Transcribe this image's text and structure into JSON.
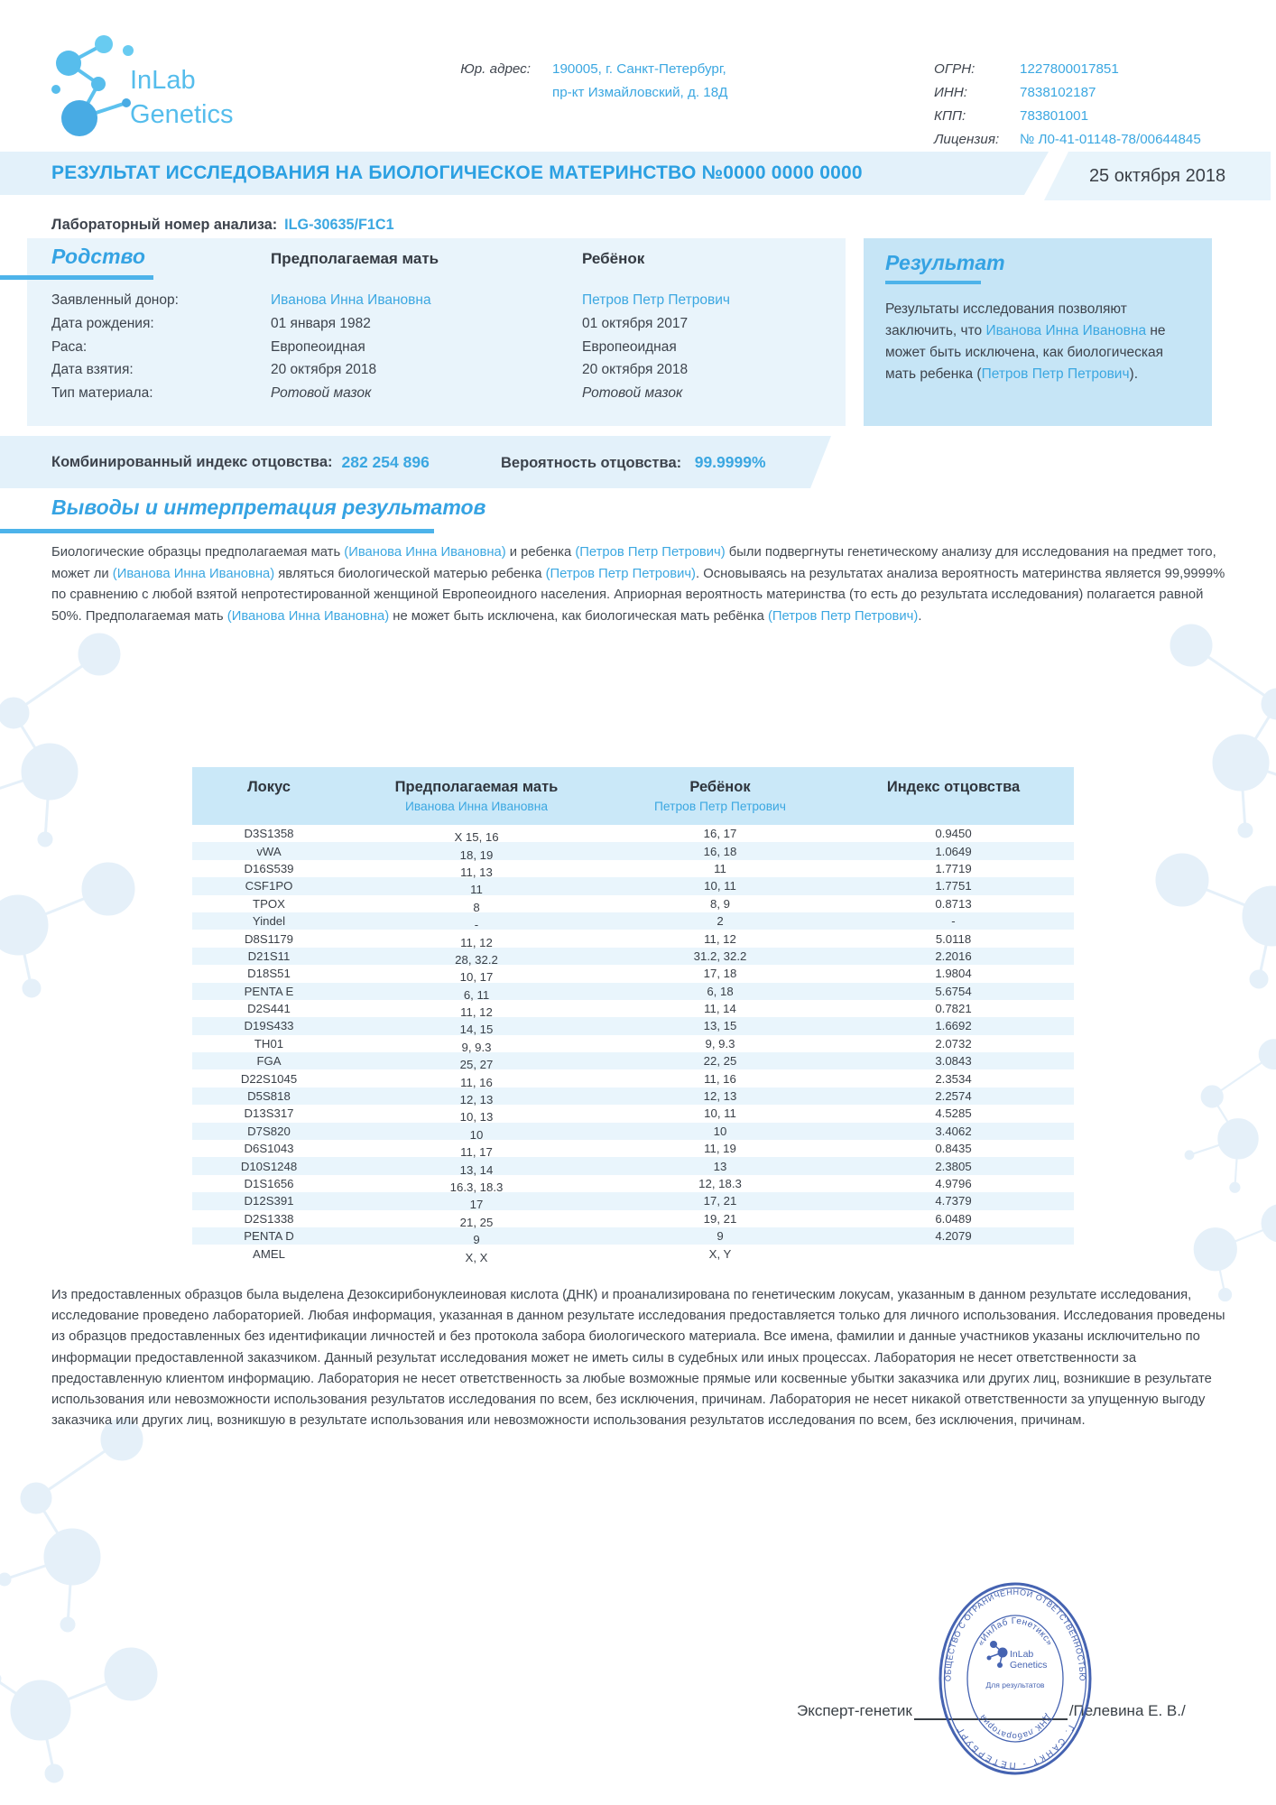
{
  "header": {
    "logo": {
      "line1": "InLab",
      "line2": "Genetics"
    },
    "legal_address_label": "Юр. адрес:",
    "legal_address_line1": "190005, г. Санкт-Петербург,",
    "legal_address_line2": "пр-кт Измайловский, д. 18Д",
    "registry": {
      "rows": [
        {
          "label": "ОГРН:",
          "value": "1227800017851"
        },
        {
          "label": "ИНН:",
          "value": "7838102187"
        },
        {
          "label": "КПП:",
          "value": "783801001"
        },
        {
          "label": "Лицензия:",
          "value": "№ Л0-41-01148-78/00644845"
        }
      ]
    }
  },
  "title_bar": {
    "title": "РЕЗУЛЬТАТ ИССЛЕДОВАНИЯ НА БИОЛОГИЧЕСКОЕ МАТЕРИНСТВО №0000 0000 0000",
    "date": "25 октября 2018"
  },
  "lab_number": {
    "label": "Лабораторный номер анализа:",
    "value": "ILG-30635/F1C1"
  },
  "kinship": {
    "section_title": "Родство",
    "mother_header": "Предполагаемая мать",
    "child_header": "Ребёнок",
    "rows": [
      {
        "label": "Заявленный донор:",
        "mother": "Иванова Инна Ивановна",
        "child": "Петров Петр Петрович"
      },
      {
        "label": "Дата рождения:",
        "mother": "01 января 1982",
        "child": "01 октября 2017"
      },
      {
        "label": "Раса:",
        "mother": "Европеоидная",
        "child": "Европеоидная"
      },
      {
        "label": "Дата взятия:",
        "mother": "20 октября 2018",
        "child": "20 октября 2018"
      },
      {
        "label": "Тип материала:",
        "mother": "Ротовой мазок",
        "child": "Ротовой мазок"
      }
    ]
  },
  "result_box": {
    "section_title": "Результат",
    "text_parts": [
      {
        "text": "Результаты исследования позволяют заключить, что "
      },
      {
        "text": "Иванова Инна Ивановна",
        "accent": true
      },
      {
        "text": " не может быть исключена, как биологическая мать ребенка ("
      },
      {
        "text": "Петров Петр Петрович",
        "accent": true
      },
      {
        "text": ")."
      }
    ]
  },
  "index_band": {
    "cpi_label": "Комбинированный индекс отцовства:",
    "cpi_value": "282 254 896",
    "prob_label": "Вероятность отцовства:",
    "prob_value": "99.9999%"
  },
  "conclusions": {
    "section_title": "Выводы и интерпретация результатов",
    "paragraph_parts": [
      {
        "text": "Биологические образцы предполагаемая мать "
      },
      {
        "text": "(Иванова Инна Ивановна)",
        "accent": true
      },
      {
        "text": " и ребенка "
      },
      {
        "text": "(Петров Петр Петрович)",
        "accent": true
      },
      {
        "text": " были подвергнуты генетическому анализу для исследования на предмет того, может ли "
      },
      {
        "text": "(Иванова Инна Ивановна)",
        "accent": true
      },
      {
        "text": " являться биологической матерью ребенка "
      },
      {
        "text": "(Петров Петр Петрович)",
        "accent": true
      },
      {
        "text": ". Основываясь на результатах анализа вероятность материнства является 99,9999% по сравнению с любой взятой непротестированной женщиной Европеоидного населения. Априорная вероятность материнства (то есть до результата исследования) полагается равной 50%. Предполагаемая мать "
      },
      {
        "text": "(Иванова Инна Ивановна)",
        "accent": true
      },
      {
        "text": " не может быть исключена, как биологическая мать ребёнка "
      },
      {
        "text": "(Петров Петр Петрович)",
        "accent": true
      },
      {
        "text": "."
      }
    ]
  },
  "table": {
    "headers": {
      "locus": "Локус",
      "mother": "Предполагаемая мать",
      "mother_name": "Иванова Инна Ивановна",
      "child": "Ребёнок",
      "child_name": "Петров Петр Петрович",
      "index": "Индекс отцовства"
    },
    "rows": [
      {
        "locus": "D3S1358",
        "mother": "X 15, 16",
        "child": "16, 17",
        "index": "0.9450"
      },
      {
        "locus": "vWA",
        "mother": "18, 19",
        "child": "16, 18",
        "index": "1.0649"
      },
      {
        "locus": "D16S539",
        "mother": "11, 13",
        "child": "11",
        "index": "1.7719"
      },
      {
        "locus": "CSF1PO",
        "mother": "11",
        "child": "10, 11",
        "index": "1.7751"
      },
      {
        "locus": "TPOX",
        "mother": "8",
        "child": "8, 9",
        "index": "0.8713"
      },
      {
        "locus": "Yindel",
        "mother": "-",
        "child": "2",
        "index": "-"
      },
      {
        "locus": "D8S1179",
        "mother": "11, 12",
        "child": "11, 12",
        "index": "5.0118"
      },
      {
        "locus": "D21S11",
        "mother": "28, 32.2",
        "child": "31.2, 32.2",
        "index": "2.2016"
      },
      {
        "locus": "D18S51",
        "mother": "10, 17",
        "child": "17, 18",
        "index": "1.9804"
      },
      {
        "locus": "PENTA E",
        "mother": "6, 11",
        "child": "6, 18",
        "index": "5.6754"
      },
      {
        "locus": "D2S441",
        "mother": "11, 12",
        "child": "11, 14",
        "index": "0.7821"
      },
      {
        "locus": "D19S433",
        "mother": "14, 15",
        "child": "13, 15",
        "index": "1.6692"
      },
      {
        "locus": "TH01",
        "mother": "9, 9.3",
        "child": "9, 9.3",
        "index": "2.0732"
      },
      {
        "locus": "FGA",
        "mother": "25, 27",
        "child": "22, 25",
        "index": "3.0843"
      },
      {
        "locus": "D22S1045",
        "mother": "11, 16",
        "child": "11, 16",
        "index": "2.3534"
      },
      {
        "locus": "D5S818",
        "mother": "12, 13",
        "child": "12, 13",
        "index": "2.2574"
      },
      {
        "locus": "D13S317",
        "mother": "10, 13",
        "child": "10, 11",
        "index": "4.5285"
      },
      {
        "locus": "D7S820",
        "mother": "10",
        "child": "10",
        "index": "3.4062"
      },
      {
        "locus": "D6S1043",
        "mother": "11, 17",
        "child": "11, 19",
        "index": "0.8435"
      },
      {
        "locus": "D10S1248",
        "mother": "13, 14",
        "child": "13",
        "index": "2.3805"
      },
      {
        "locus": "D1S1656",
        "mother": "16.3, 18.3",
        "child": "12, 18.3",
        "index": "4.9796"
      },
      {
        "locus": "D12S391",
        "mother": "17",
        "child": "17, 21",
        "index": "4.7379"
      },
      {
        "locus": "D2S1338",
        "mother": "21, 25",
        "child": "19, 21",
        "index": "6.0489"
      },
      {
        "locus": "PENTA D",
        "mother": "9",
        "child": "9",
        "index": "4.2079"
      },
      {
        "locus": "AMEL",
        "mother": "X, X",
        "child": "X, Y",
        "index": ""
      }
    ]
  },
  "disclaimer": "Из предоставленных образцов была выделена Дезоксирибонуклеиновая кислота (ДНК) и проанализирована по генетическим локусам, указанным в данном результате исследования, исследование проведено лабораторией. Любая информация, указанная в данном результате исследования предоставляется только для личного использования. Исследования проведены из образцов предоставленных без идентификации личностей и без протокола забора биологического материала.  Все имена, фамилии и данные участников указаны исключительно по информации предоставленной заказчиком. Данный результат исследования может не иметь силы в судебных или иных процессах. Лаборатория не несет ответственности за предоставленную клиентом информацию. Лаборатория не несет ответственность за любые возможные прямые или косвенные убытки заказчика или других лиц, возникшие в результате использования или невозможности использования результатов исследования по всем, без исключения, причинам.  Лаборатория не несет никакой ответственности за упущенную выгоду заказчика или других лиц, возникшую в результате использования или невозможности использования результатов исследования по всем, без исключения, причинам.",
  "footer": {
    "signature_label": "Эксперт-генетик",
    "signature_name": "/Пелевина Е. В./"
  },
  "stamp": {
    "outer_top": "ОБЩЕСТВО С ОГРАНИЧЕННОЙ ОТВЕТСТВЕННОСТЬЮ",
    "outer_bottom": "Г. САНКТ - ПЕТЕРБУРГ",
    "inner_top": "«ИнЛаб Генетикс»",
    "inner_bottom": "ДНК лаборатория",
    "center_line1": "InLab",
    "center_line2": "Genetics",
    "center_caption": "Для результатов"
  },
  "colors": {
    "brand_blue": "#57bdec",
    "accent_text_blue": "#3ba7e1",
    "section_heading_blue": "#35a3e3",
    "title_bar_bg": "#e3f1fa",
    "kinship_panel_bg": "#e9f4fb",
    "result_panel_bg": "#c6e5f6",
    "table_header_bg": "#cae8f8",
    "table_stripe_bg": "#e9f5fc",
    "stamp_blue": "#3c5bad",
    "dark_text": "#3d434c"
  }
}
